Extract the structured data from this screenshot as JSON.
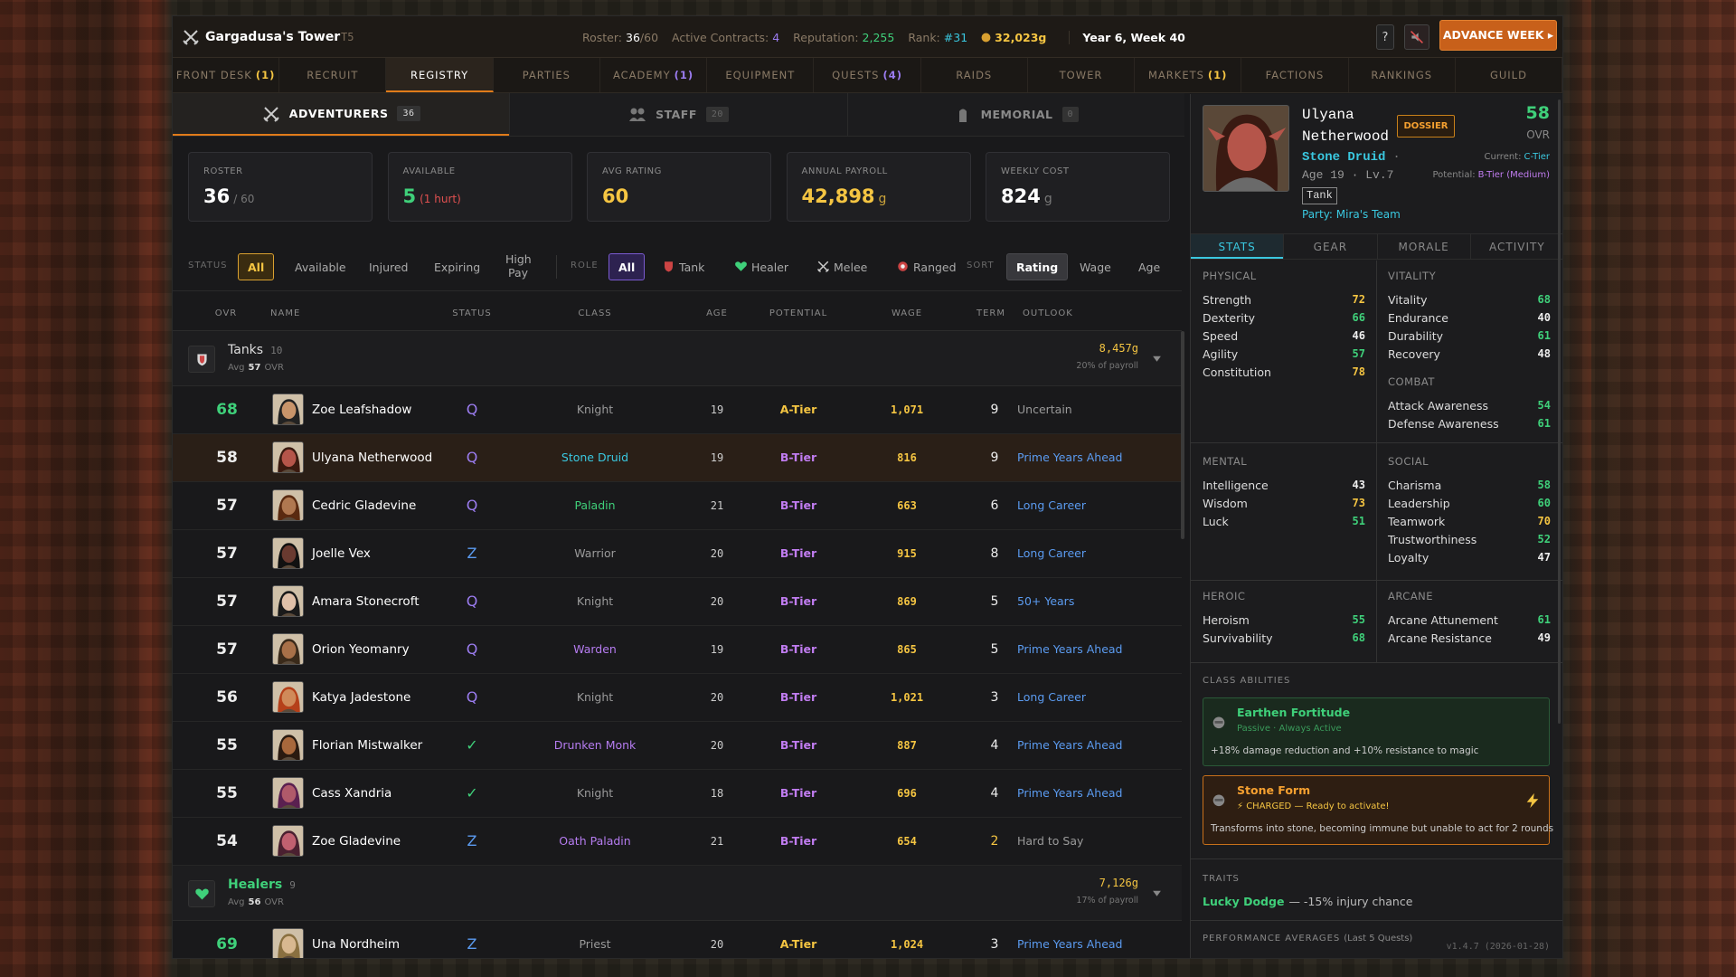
{
  "header": {
    "title": "Gargadusa's Tower",
    "tier": "T5",
    "roster_label": "Roster:",
    "roster": "36",
    "roster_max": "/60",
    "contracts_label": "Active Contracts:",
    "contracts": "4",
    "reputation_label": "Reputation:",
    "reputation": "2,255",
    "rank_label": "Rank:",
    "rank": "#31",
    "gold": "32,023g",
    "date": "Year 6, Week 40",
    "help": "?",
    "advance": "ADVANCE WEEK ▸"
  },
  "nav": [
    {
      "label": "FRONT DESK",
      "badge": "(1)",
      "badge_color": "#f5c542"
    },
    {
      "label": "RECRUIT"
    },
    {
      "label": "REGISTRY",
      "active": true
    },
    {
      "label": "PARTIES"
    },
    {
      "label": "ACADEMY",
      "badge": "(1)",
      "badge_color": "#9b7cf0"
    },
    {
      "label": "EQUIPMENT"
    },
    {
      "label": "QUESTS",
      "badge": "(4)",
      "badge_color": "#9b7cf0"
    },
    {
      "label": "RAIDS"
    },
    {
      "label": "TOWER"
    },
    {
      "label": "MARKETS",
      "badge": "(1)",
      "badge_color": "#f5c542"
    },
    {
      "label": "FACTIONS"
    },
    {
      "label": "RANKINGS"
    },
    {
      "label": "GUILD"
    }
  ],
  "subtabs": [
    {
      "label": "ADVENTURERS",
      "count": "36",
      "active": true
    },
    {
      "label": "STAFF",
      "count": "20"
    },
    {
      "label": "MEMORIAL",
      "count": "0"
    }
  ],
  "stats": [
    {
      "label": "ROSTER",
      "value": "36",
      "suffix": "/ 60",
      "color": "#ffffff",
      "suffix_color": "#777777"
    },
    {
      "label": "AVAILABLE",
      "value": "5",
      "suffix": "(1 hurt)",
      "color": "#3fd07a",
      "suffix_color": "#e05050"
    },
    {
      "label": "AVG RATING",
      "value": "60",
      "color": "#f5c542"
    },
    {
      "label": "ANNUAL PAYROLL",
      "value": "42,898",
      "suffix": "g",
      "color": "#f5c542",
      "suffix_color": "#c9a23a"
    },
    {
      "label": "WEEKLY COST",
      "value": "824",
      "suffix": "g",
      "color": "#ffffff",
      "suffix_color": "#777777"
    }
  ],
  "filters": {
    "status_label": "STATUS",
    "status": [
      "All",
      "Available",
      "Injured",
      "Expiring",
      "High Pay"
    ],
    "role_label": "ROLE",
    "roles": [
      "All",
      "Tank",
      "Healer",
      "Melee",
      "Ranged"
    ],
    "sort_label": "SORT",
    "sort": [
      "Rating",
      "Wage",
      "Age"
    ]
  },
  "columns": [
    "OVR",
    "NAME",
    "STATUS",
    "CLASS",
    "AGE",
    "POTENTIAL",
    "WAGE",
    "TERM",
    "OUTLOOK"
  ],
  "groups": [
    {
      "name": "Tanks",
      "count": "10",
      "avg_prefix": "Avg",
      "avg": "57",
      "avg_suffix": "OVR",
      "cost": "8,457g",
      "share": "20% of payroll",
      "rows": [
        {
          "ovr": 68,
          "name": "Zoe Leafshadow",
          "status": "Q",
          "status_color": "#9b7cf0",
          "class": "Knight",
          "class_color": "#9a9a9a",
          "age": 19,
          "potential": "A-Tier",
          "potential_color": "#f5c542",
          "wage": "1,071",
          "term": 9,
          "outlook": "Uncertain",
          "outlook_color": "#9a9a9a"
        },
        {
          "ovr": 58,
          "name": "Ulyana Netherwood",
          "status": "Q",
          "status_color": "#9b7cf0",
          "class": "Stone Druid",
          "class_color": "#3ac8e0",
          "age": 19,
          "potential": "B-Tier",
          "potential_color": "#c07cf0",
          "wage": "816",
          "term": 9,
          "outlook": "Prime Years Ahead",
          "outlook_color": "#5b9bf0",
          "selected": true
        },
        {
          "ovr": 57,
          "name": "Cedric Gladevine",
          "status": "Q",
          "status_color": "#9b7cf0",
          "class": "Paladin",
          "class_color": "#3fd07a",
          "age": 21,
          "potential": "B-Tier",
          "potential_color": "#c07cf0",
          "wage": "663",
          "term": 6,
          "outlook": "Long Career",
          "outlook_color": "#5b9bf0"
        },
        {
          "ovr": 57,
          "name": "Joelle Vex",
          "status": "Z",
          "status_color": "#5b9bf0",
          "class": "Warrior",
          "class_color": "#9a9a9a",
          "age": 20,
          "potential": "B-Tier",
          "potential_color": "#c07cf0",
          "wage": "915",
          "term": 8,
          "outlook": "Long Career",
          "outlook_color": "#5b9bf0"
        },
        {
          "ovr": 57,
          "name": "Amara Stonecroft",
          "status": "Q",
          "status_color": "#9b7cf0",
          "class": "Knight",
          "class_color": "#9a9a9a",
          "age": 20,
          "potential": "B-Tier",
          "potential_color": "#c07cf0",
          "wage": "869",
          "term": 5,
          "outlook": "50+ Years",
          "outlook_color": "#5b9bf0"
        },
        {
          "ovr": 57,
          "name": "Orion Yeomanry",
          "status": "Q",
          "status_color": "#9b7cf0",
          "class": "Warden",
          "class_color": "#b57cf0",
          "age": 19,
          "potential": "B-Tier",
          "potential_color": "#c07cf0",
          "wage": "865",
          "term": 5,
          "outlook": "Prime Years Ahead",
          "outlook_color": "#5b9bf0"
        },
        {
          "ovr": 56,
          "name": "Katya Jadestone",
          "status": "Q",
          "status_color": "#9b7cf0",
          "class": "Knight",
          "class_color": "#9a9a9a",
          "age": 20,
          "potential": "B-Tier",
          "potential_color": "#c07cf0",
          "wage": "1,021",
          "term": 3,
          "outlook": "Long Career",
          "outlook_color": "#5b9bf0"
        },
        {
          "ovr": 55,
          "name": "Florian Mistwalker",
          "status": "✓",
          "status_color": "#3fd07a",
          "class": "Drunken Monk",
          "class_color": "#b57cf0",
          "age": 20,
          "potential": "B-Tier",
          "potential_color": "#c07cf0",
          "wage": "887",
          "term": 4,
          "outlook": "Prime Years Ahead",
          "outlook_color": "#5b9bf0"
        },
        {
          "ovr": 55,
          "name": "Cass Xandria",
          "status": "✓",
          "status_color": "#3fd07a",
          "class": "Knight",
          "class_color": "#9a9a9a",
          "age": 18,
          "potential": "B-Tier",
          "potential_color": "#c07cf0",
          "wage": "696",
          "term": 4,
          "outlook": "Prime Years Ahead",
          "outlook_color": "#5b9bf0"
        },
        {
          "ovr": 54,
          "name": "Zoe Gladevine",
          "status": "Z",
          "status_color": "#5b9bf0",
          "class": "Oath Paladin",
          "class_color": "#b57cf0",
          "age": 21,
          "potential": "B-Tier",
          "potential_color": "#c07cf0",
          "wage": "654",
          "term": 2,
          "outlook": "Hard to Say",
          "outlook_color": "#9a9a9a"
        }
      ]
    },
    {
      "name": "Healers",
      "count": "9",
      "avg_prefix": "Avg",
      "avg": "56",
      "avg_suffix": "OVR",
      "cost": "7,126g",
      "share": "17% of payroll",
      "rows": [
        {
          "ovr": 69,
          "name": "Una Nordheim",
          "status": "Z",
          "status_color": "#5b9bf0",
          "class": "Priest",
          "class_color": "#9a9a9a",
          "age": 20,
          "potential": "A-Tier",
          "potential_color": "#f5c542",
          "wage": "1,024",
          "term": 3,
          "outlook": "Prime Years Ahead",
          "outlook_color": "#5b9bf0"
        }
      ]
    }
  ],
  "detail": {
    "name_first": "Ulyana",
    "name_last": "Netherwood",
    "dossier": "DOSSIER",
    "ovr": "58",
    "ovr_label": "OVR",
    "class": "Stone Druid",
    "dot": "·",
    "current_label": "Current:",
    "current": "C-Tier",
    "age": "Age 19 · Lv.7",
    "potential_label": "Potential:",
    "potential": "B-Tier (Medium)",
    "role": "Tank",
    "party": "Party: Mira's Team",
    "tabs": [
      "STATS",
      "GEAR",
      "MORALE",
      "ACTIVITY"
    ],
    "sections": [
      {
        "title": "PHYSICAL",
        "stats": [
          {
            "name": "Strength",
            "value": 72
          },
          {
            "name": "Dexterity",
            "value": 66
          },
          {
            "name": "Speed",
            "value": 46
          },
          {
            "name": "Agility",
            "value": 57
          },
          {
            "name": "Constitution",
            "value": 78
          }
        ]
      },
      {
        "title": "VITALITY",
        "stats": [
          {
            "name": "Vitality",
            "value": 68
          },
          {
            "name": "Endurance",
            "value": 40
          },
          {
            "name": "Durability",
            "value": 61
          },
          {
            "name": "Recovery",
            "value": 48
          }
        ]
      },
      {
        "title": "COMBAT",
        "stats": [
          {
            "name": "Attack Awareness",
            "value": 54
          },
          {
            "name": "Defense Awareness",
            "value": 61
          }
        ]
      },
      {
        "title": "MENTAL",
        "stats": [
          {
            "name": "Intelligence",
            "value": 43
          },
          {
            "name": "Wisdom",
            "value": 73
          },
          {
            "name": "Luck",
            "value": 51
          }
        ]
      },
      {
        "title": "SOCIAL",
        "stats": [
          {
            "name": "Charisma",
            "value": 58
          },
          {
            "name": "Leadership",
            "value": 60
          },
          {
            "name": "Teamwork",
            "value": 70
          },
          {
            "name": "Trustworthiness",
            "value": 52
          },
          {
            "name": "Loyalty",
            "value": 47
          }
        ]
      },
      {
        "title": "HEROIC",
        "stats": [
          {
            "name": "Heroism",
            "value": 55
          },
          {
            "name": "Survivability",
            "value": 68
          }
        ]
      },
      {
        "title": "ARCANE",
        "stats": [
          {
            "name": "Arcane Attunement",
            "value": 61
          },
          {
            "name": "Arcane Resistance",
            "value": 49
          }
        ]
      }
    ],
    "abilities_title": "CLASS ABILITIES",
    "abilities": [
      {
        "name": "Earthen Fortitude",
        "sub": "Passive · Always Active",
        "desc": "+18% damage reduction and +10% resistance to magic"
      },
      {
        "name": "Stone Form",
        "sub": "⚡ CHARGED — Ready to activate!",
        "desc": "Transforms into stone, becoming immune but unable to act for 2 rounds"
      }
    ],
    "traits_title": "TRAITS",
    "trait_name": "Lucky Dodge",
    "trait_desc": "— -15% injury chance",
    "perf_title": "PERFORMANCE AVERAGES",
    "perf_note": "(Last 5 Quests)",
    "version": "v1.4.7 (2026-01-28)"
  }
}
